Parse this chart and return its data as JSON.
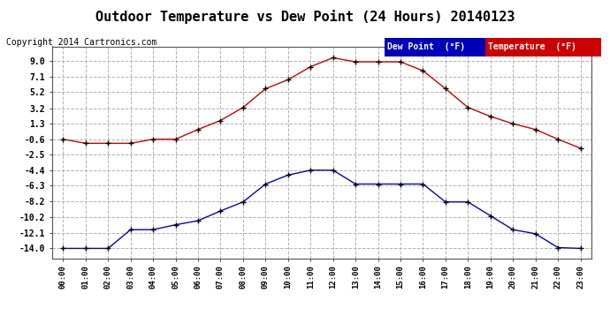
{
  "title": "Outdoor Temperature vs Dew Point (24 Hours) 20140123",
  "copyright": "Copyright 2014 Cartronics.com",
  "hours": [
    "00:00",
    "01:00",
    "02:00",
    "03:00",
    "04:00",
    "05:00",
    "06:00",
    "07:00",
    "08:00",
    "09:00",
    "10:00",
    "11:00",
    "12:00",
    "13:00",
    "14:00",
    "15:00",
    "16:00",
    "17:00",
    "18:00",
    "19:00",
    "20:00",
    "21:00",
    "22:00",
    "23:00"
  ],
  "temperature": [
    -0.6,
    -1.1,
    -1.1,
    -1.1,
    -0.6,
    -0.6,
    0.6,
    1.7,
    3.3,
    5.6,
    6.7,
    8.3,
    9.4,
    8.9,
    8.9,
    8.9,
    7.8,
    5.6,
    3.3,
    2.2,
    1.3,
    0.6,
    -0.6,
    -1.7
  ],
  "dew_point": [
    -14.0,
    -14.0,
    -14.0,
    -11.7,
    -11.7,
    -11.1,
    -10.6,
    -9.4,
    -8.3,
    -6.1,
    -5.0,
    -4.4,
    -4.4,
    -6.1,
    -6.1,
    -6.1,
    -6.1,
    -8.3,
    -8.3,
    -10.0,
    -11.7,
    -12.2,
    -13.9,
    -14.0
  ],
  "yticks": [
    9.0,
    7.1,
    5.2,
    3.2,
    1.3,
    -0.6,
    -2.5,
    -4.4,
    -6.3,
    -8.2,
    -10.2,
    -12.1,
    -14.0
  ],
  "ylim": [
    -15.2,
    10.8
  ],
  "temp_color": "#cc0000",
  "dew_color": "#0000cc",
  "background_color": "#ffffff",
  "grid_color": "#aaaaaa",
  "legend_temp_bg": "#cc0000",
  "legend_dew_bg": "#0000bb",
  "title_fontsize": 11,
  "copyright_fontsize": 7
}
